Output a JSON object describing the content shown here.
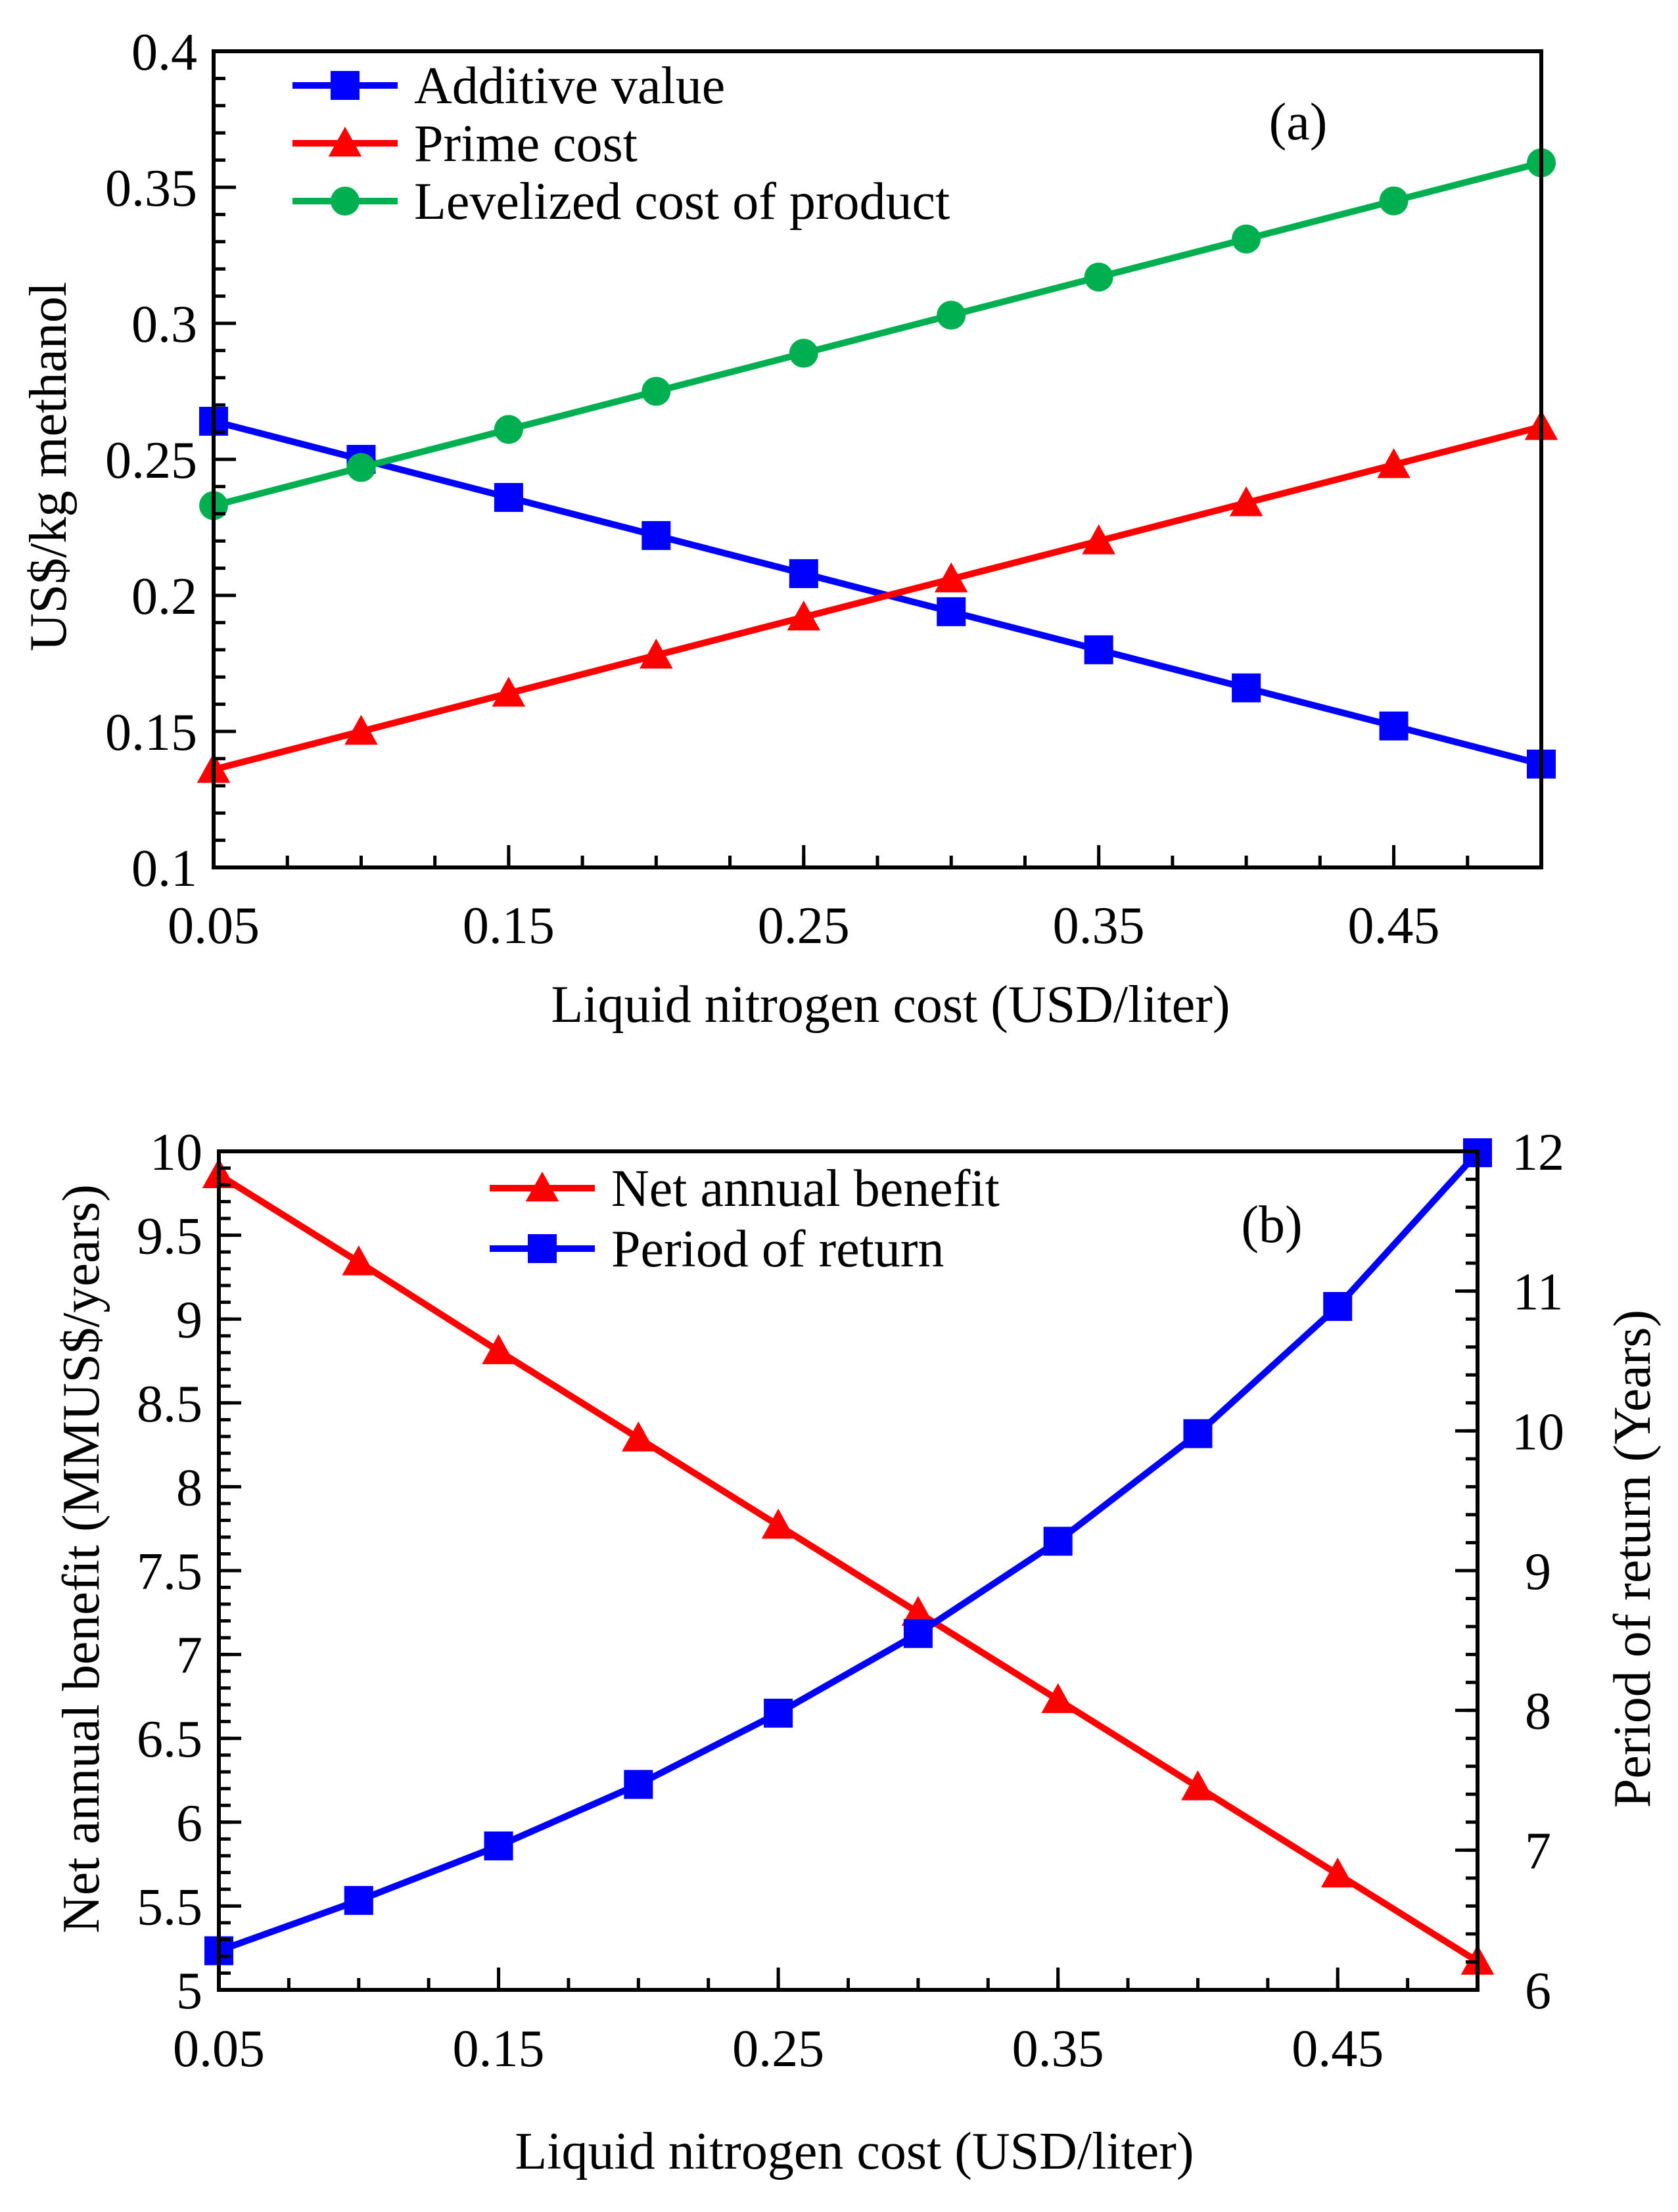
{
  "chart_data": [
    {
      "type": "line",
      "panel_label": "(a)",
      "title": "",
      "xlabel": "Liquid nitrogen cost (USD/liter)",
      "ylabel": "US$/kg methanol",
      "xlim": [
        0.05,
        0.5
      ],
      "ylim": [
        0.1,
        0.4
      ],
      "x_ticks": [
        0.05,
        0.15,
        0.25,
        0.35,
        0.45
      ],
      "x_tick_labels": [
        "0.05",
        "0.15",
        "0.25",
        "0.35",
        "0.45"
      ],
      "y_ticks": [
        0.1,
        0.15,
        0.2,
        0.25,
        0.3,
        0.35,
        0.4
      ],
      "y_tick_labels": [
        "0.1",
        "0.15",
        "0.2",
        "0.25",
        "0.3",
        "0.35",
        "0.4"
      ],
      "grid": false,
      "legend_position": "top-left",
      "x": [
        0.05,
        0.1,
        0.15,
        0.2,
        0.25,
        0.3,
        0.35,
        0.4,
        0.45,
        0.5
      ],
      "series": [
        {
          "name": "Additive value",
          "color": "#0000ff",
          "marker": "square",
          "axis": "left",
          "values": [
            0.264,
            0.25,
            0.236,
            0.222,
            0.208,
            0.194,
            0.18,
            0.166,
            0.152,
            0.138
          ]
        },
        {
          "name": "Prime cost",
          "color": "#ff0000",
          "marker": "triangle",
          "axis": "left",
          "values": [
            0.136,
            0.15,
            0.164,
            0.178,
            0.192,
            0.206,
            0.22,
            0.234,
            0.248,
            0.262
          ]
        },
        {
          "name": "Levelized cost of product",
          "color": "#00b050",
          "marker": "circle",
          "axis": "left",
          "values": [
            0.233,
            0.247,
            0.261,
            0.275,
            0.289,
            0.303,
            0.317,
            0.331,
            0.345,
            0.359
          ]
        }
      ]
    },
    {
      "type": "line",
      "panel_label": "(b)",
      "title": "",
      "xlabel": "Liquid nitrogen cost (USD/liter)",
      "ylabel": "Net annual benefit (MMUS$/years)",
      "y2label": "Period of return (Years)",
      "xlim": [
        0.05,
        0.5
      ],
      "ylim": [
        5,
        10
      ],
      "y2lim": [
        6,
        12
      ],
      "x_ticks": [
        0.05,
        0.15,
        0.25,
        0.35,
        0.45
      ],
      "x_tick_labels": [
        "0.05",
        "0.15",
        "0.25",
        "0.35",
        "0.45"
      ],
      "y_ticks": [
        5,
        5.5,
        6,
        6.5,
        7,
        7.5,
        8,
        8.5,
        9,
        9.5,
        10
      ],
      "y_tick_labels": [
        "5",
        "5.5",
        "6",
        "6.5",
        "7",
        "7.5",
        "8",
        "8.5",
        "9",
        "9.5",
        "10"
      ],
      "y2_ticks": [
        6,
        7,
        8,
        9,
        10,
        11,
        12
      ],
      "y2_tick_labels": [
        "6",
        "7",
        "8",
        "9",
        "10",
        "11",
        "12"
      ],
      "grid": false,
      "legend_position": "top-center",
      "x": [
        0.05,
        0.1,
        0.15,
        0.2,
        0.25,
        0.3,
        0.35,
        0.4,
        0.45,
        0.5
      ],
      "series": [
        {
          "name": "Net annual benefit",
          "color": "#ff0000",
          "marker": "triangle",
          "axis": "left",
          "values": [
            9.86,
            9.34,
            8.81,
            8.29,
            7.77,
            7.25,
            6.73,
            6.21,
            5.69,
            5.17
          ]
        },
        {
          "name": "Period of return",
          "color": "#0000ff",
          "marker": "square",
          "axis": "right",
          "values": [
            6.28,
            6.64,
            7.03,
            7.47,
            7.98,
            8.55,
            9.21,
            9.98,
            10.89,
            11.99
          ]
        }
      ]
    }
  ]
}
